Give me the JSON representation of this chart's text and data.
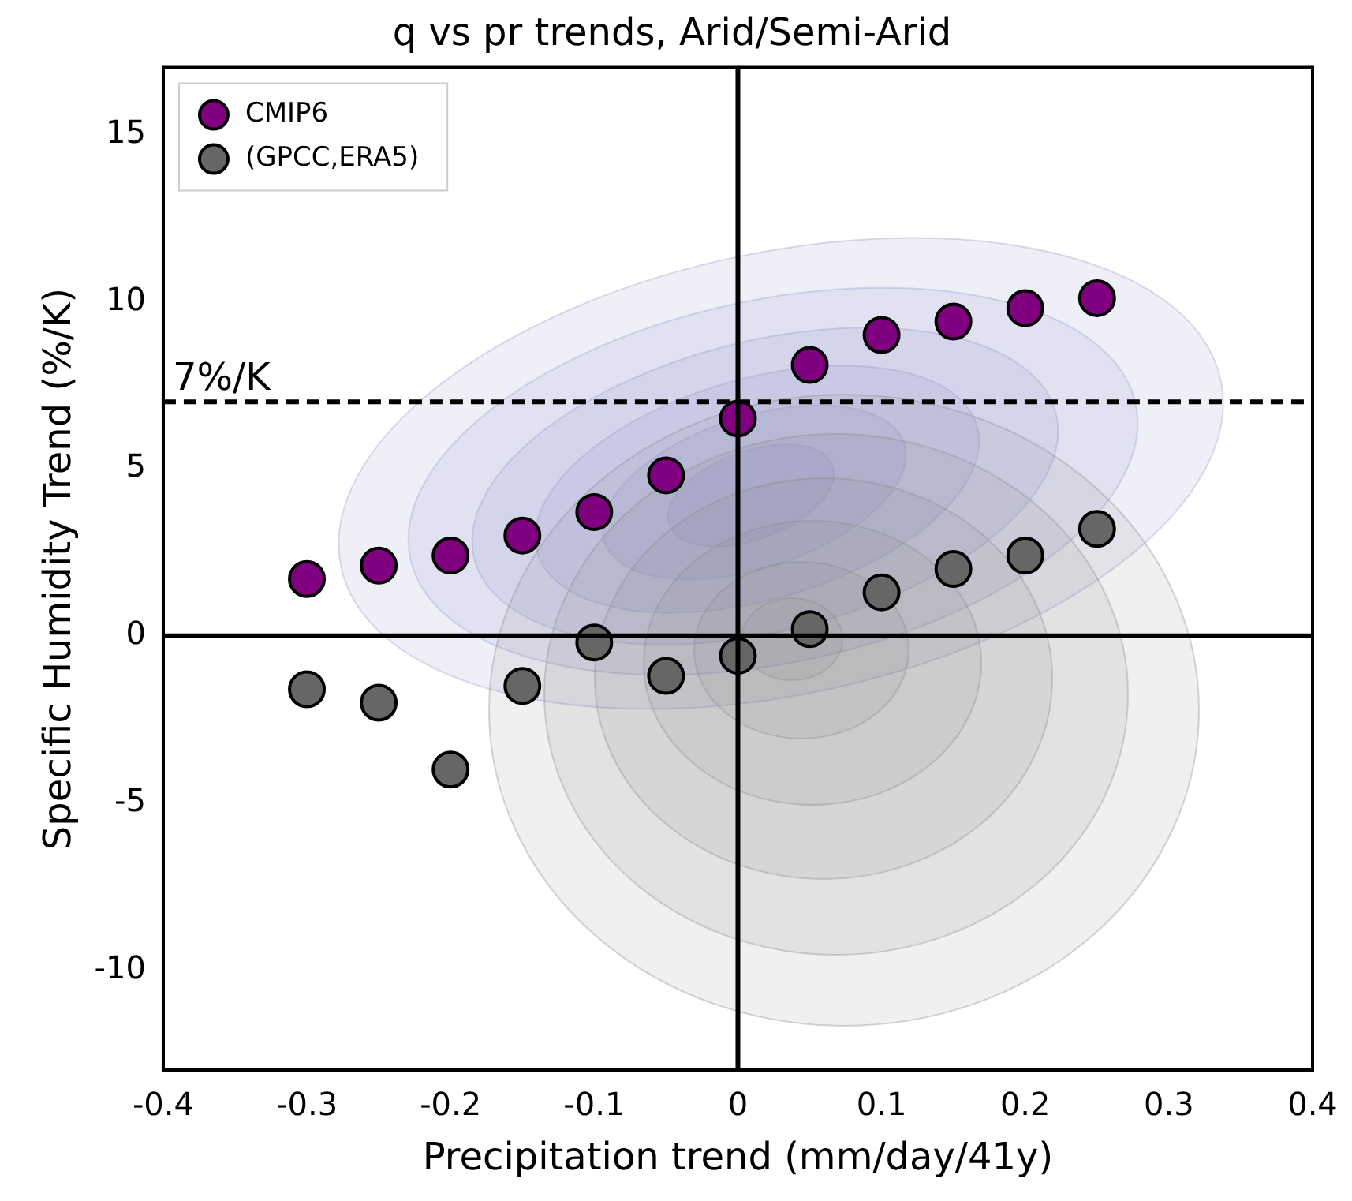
{
  "chart_data": {
    "type": "scatter",
    "title": "q vs pr trends, Arid/Semi-Arid",
    "xlabel": "Precipitation trend (mm/day/41y)",
    "ylabel": "Specific Humidity Trend (%/K)",
    "x": [
      -0.3,
      -0.25,
      -0.2,
      -0.15,
      -0.1,
      -0.05,
      0,
      0.05,
      0.1,
      0.15,
      0.2,
      0.25
    ],
    "series": [
      {
        "name": "CMIP6",
        "color": "#800080",
        "values": [
          1.7,
          2.1,
          2.4,
          3.0,
          3.7,
          4.8,
          6.5,
          8.1,
          9.0,
          9.4,
          9.8,
          10.1
        ]
      },
      {
        "name": "(GPCC,ERA5)",
        "color": "#666666",
        "values": [
          -1.6,
          -2.0,
          -4.0,
          -1.5,
          -0.2,
          -1.2,
          -0.6,
          0.2,
          1.3,
          2.0,
          2.4,
          3.2
        ]
      }
    ],
    "xlim": [
      -0.4,
      0.4
    ],
    "xticks": [
      -0.4,
      -0.3,
      -0.2,
      -0.1,
      0,
      0.1,
      0.2,
      0.3,
      0.4
    ],
    "ylim": [
      -13,
      17
    ],
    "yticks": [
      -10,
      -5,
      0,
      5,
      10,
      15
    ],
    "ref_lines": [
      {
        "axis": "y",
        "value": 7,
        "label": "7%/K",
        "line_style": "dashed",
        "color": "#000000"
      },
      {
        "axis": "y",
        "value": 0,
        "label": null,
        "line_style": "solid",
        "color": "#000000"
      },
      {
        "axis": "x",
        "value": 0,
        "label": null,
        "line_style": "solid",
        "color": "#000000"
      }
    ],
    "grid": false,
    "legend": "top left",
    "marker": "circle"
  }
}
